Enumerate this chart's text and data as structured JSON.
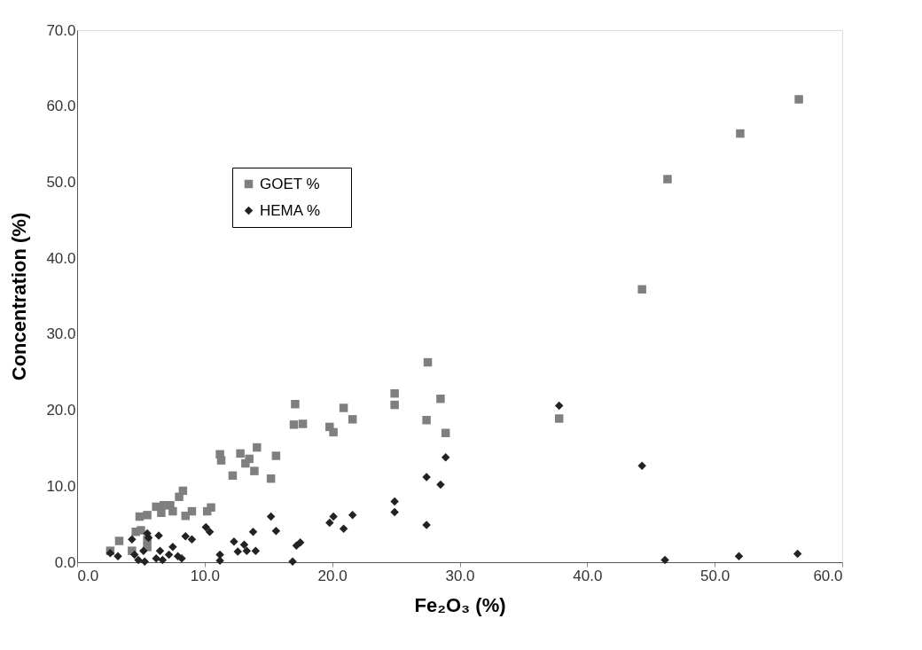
{
  "chart_data": {
    "type": "scatter",
    "xlabel": "Fe₂O₃  (%)",
    "ylabel": "Concentration  (%)",
    "xlim": [
      0,
      60
    ],
    "ylim": [
      0,
      70
    ],
    "xticks": [
      {
        "value": 0,
        "label": "0.0"
      },
      {
        "value": 10,
        "label": "10.0"
      },
      {
        "value": 20,
        "label": "20.0"
      },
      {
        "value": 30,
        "label": "30.0"
      },
      {
        "value": 40,
        "label": "40.0"
      },
      {
        "value": 50,
        "label": "50.0"
      },
      {
        "value": 60,
        "label": "60.0"
      }
    ],
    "yticks": [
      {
        "value": 0,
        "label": "0.0"
      },
      {
        "value": 10,
        "label": "10.0"
      },
      {
        "value": 20,
        "label": "20.0"
      },
      {
        "value": 30,
        "label": "30.0"
      },
      {
        "value": 40,
        "label": "40.0"
      },
      {
        "value": 50,
        "label": "50.0"
      },
      {
        "value": 60,
        "label": "60.0"
      },
      {
        "value": 70,
        "label": "70.0"
      }
    ],
    "grid": false,
    "legend": "top left",
    "series": [
      {
        "name": "GOET      %",
        "color": "#7f7f7f",
        "marker": "square",
        "x": [
          2.6,
          3.3,
          4.3,
          4.6,
          4.9,
          5.0,
          5.5,
          5.5,
          5.5,
          6.2,
          6.6,
          6.8,
          7.3,
          7.5,
          8.0,
          8.3,
          8.5,
          9.0,
          10.2,
          10.5,
          11.2,
          11.3,
          12.2,
          12.8,
          13.2,
          13.5,
          13.9,
          14.1,
          15.2,
          15.6,
          17.1,
          17.0,
          17.7,
          19.8,
          20.1,
          20.9,
          21.6,
          24.9,
          24.9,
          27.5,
          27.4,
          28.5,
          28.9,
          37.8,
          44.3,
          46.3,
          52.0,
          56.6
        ],
        "values": [
          1.5,
          2.8,
          1.5,
          4.0,
          6.0,
          4.2,
          6.2,
          2.0,
          3.0,
          7.3,
          6.5,
          7.5,
          7.5,
          6.7,
          8.6,
          9.4,
          6.1,
          6.7,
          6.7,
          7.2,
          14.2,
          13.4,
          11.4,
          14.3,
          13.0,
          13.6,
          12.0,
          15.1,
          11.0,
          14.0,
          20.8,
          18.1,
          18.2,
          17.8,
          17.1,
          20.3,
          18.8,
          22.2,
          20.7,
          26.3,
          18.7,
          21.5,
          17.0,
          18.9,
          35.9,
          50.4,
          56.4,
          60.9
        ]
      },
      {
        "name": "HEMA      %",
        "color": "#222222",
        "marker": "diamond",
        "x": [
          2.6,
          3.2,
          4.3,
          4.5,
          4.8,
          5.2,
          5.3,
          5.5,
          5.6,
          6.2,
          6.4,
          6.5,
          6.7,
          7.2,
          7.5,
          7.9,
          8.2,
          8.5,
          9.0,
          10.1,
          10.4,
          11.2,
          11.2,
          12.3,
          12.6,
          13.1,
          13.3,
          13.8,
          14.0,
          15.2,
          15.6,
          16.9,
          17.2,
          17.5,
          19.8,
          20.1,
          20.9,
          21.6,
          24.9,
          24.9,
          27.4,
          27.4,
          28.5,
          28.9,
          37.8,
          44.3,
          46.1,
          51.9,
          56.5
        ],
        "values": [
          1.2,
          0.8,
          3.0,
          1.0,
          0.3,
          1.5,
          0.1,
          3.8,
          3.2,
          0.5,
          3.5,
          1.5,
          0.3,
          1.0,
          2.0,
          0.8,
          0.5,
          3.4,
          3.0,
          4.6,
          4.0,
          1.0,
          0.2,
          2.7,
          1.4,
          2.3,
          1.5,
          4.0,
          1.5,
          6.0,
          4.1,
          0.1,
          2.2,
          2.6,
          5.2,
          6.0,
          4.4,
          6.2,
          8.0,
          6.6,
          11.2,
          4.9,
          10.2,
          13.8,
          20.6,
          12.7,
          0.3,
          0.8,
          1.1
        ]
      }
    ]
  }
}
